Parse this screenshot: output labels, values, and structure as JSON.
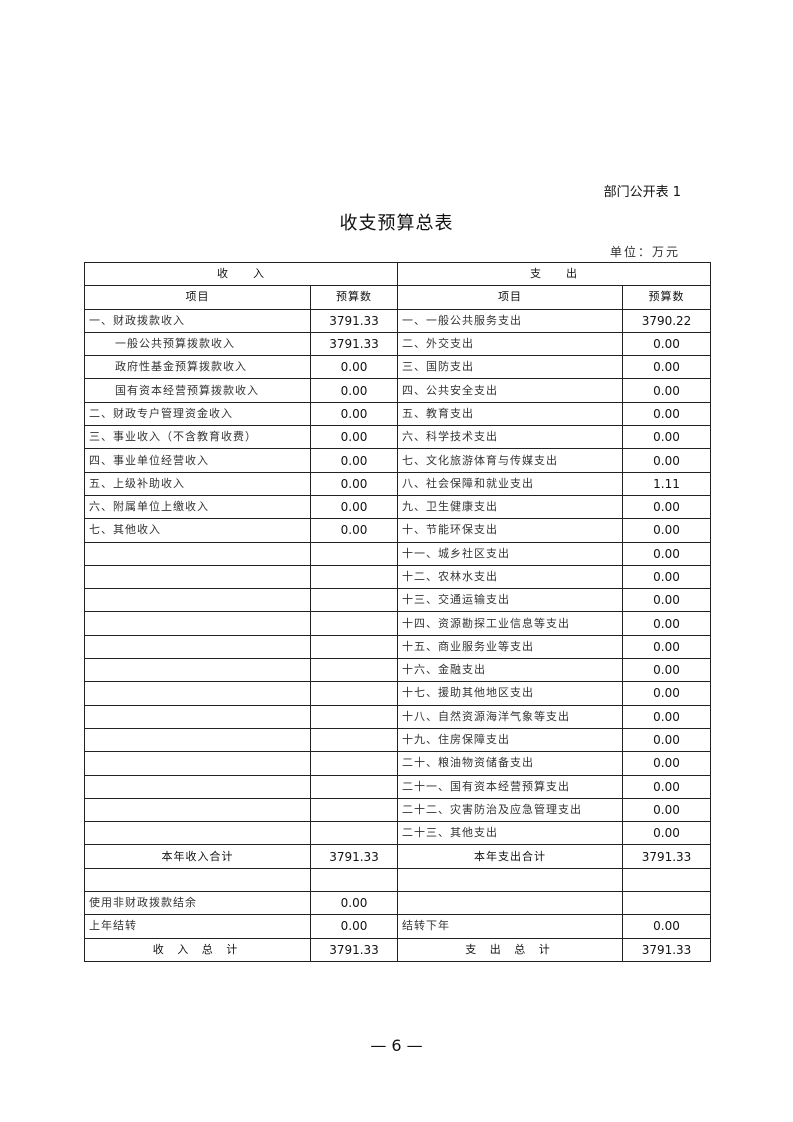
{
  "form_no": "部门公开表 1",
  "title": "收支预算总表",
  "unit": "单位：万元",
  "header": {
    "income": "收　　入",
    "expense": "支　　出",
    "item": "项目",
    "budget": "预算数"
  },
  "rows": [
    {
      "in_item": "一、财政拨款收入",
      "in_val": "3791.33",
      "out_item": "一、一般公共服务支出",
      "out_val": "3790.22"
    },
    {
      "in_item": "一般公共预算拨款收入",
      "in_indent": true,
      "in_val": "3791.33",
      "out_item": "二、外交支出",
      "out_val": "0.00"
    },
    {
      "in_item": "政府性基金预算拨款收入",
      "in_indent": true,
      "in_val": "0.00",
      "out_item": "三、国防支出",
      "out_val": "0.00"
    },
    {
      "in_item": "国有资本经营预算拨款收入",
      "in_indent": true,
      "in_val": "0.00",
      "out_item": "四、公共安全支出",
      "out_val": "0.00"
    },
    {
      "in_item": "二、财政专户管理资金收入",
      "in_val": "0.00",
      "out_item": "五、教育支出",
      "out_val": "0.00"
    },
    {
      "in_item": "三、事业收入（不含教育收费）",
      "in_val": "0.00",
      "out_item": "六、科学技术支出",
      "out_val": "0.00"
    },
    {
      "in_item": "四、事业单位经营收入",
      "in_val": "0.00",
      "out_item": "七、文化旅游体育与传媒支出",
      "out_val": "0.00"
    },
    {
      "in_item": "五、上级补助收入",
      "in_val": "0.00",
      "out_item": "八、社会保障和就业支出",
      "out_val": "1.11"
    },
    {
      "in_item": "六、附属单位上缴收入",
      "in_val": "0.00",
      "out_item": "九、卫生健康支出",
      "out_val": "0.00"
    },
    {
      "in_item": "七、其他收入",
      "in_val": "0.00",
      "out_item": "十、节能环保支出",
      "out_val": "0.00"
    },
    {
      "in_item": "",
      "in_val": "",
      "out_item": "十一、城乡社区支出",
      "out_val": "0.00"
    },
    {
      "in_item": "",
      "in_val": "",
      "out_item": "十二、农林水支出",
      "out_val": "0.00"
    },
    {
      "in_item": "",
      "in_val": "",
      "out_item": "十三、交通运输支出",
      "out_val": "0.00"
    },
    {
      "in_item": "",
      "in_val": "",
      "out_item": "十四、资源勘探工业信息等支出",
      "out_val": "0.00"
    },
    {
      "in_item": "",
      "in_val": "",
      "out_item": "十五、商业服务业等支出",
      "out_val": "0.00"
    },
    {
      "in_item": "",
      "in_val": "",
      "out_item": "十六、金融支出",
      "out_val": "0.00"
    },
    {
      "in_item": "",
      "in_val": "",
      "out_item": "十七、援助其他地区支出",
      "out_val": "0.00"
    },
    {
      "in_item": "",
      "in_val": "",
      "out_item": "十八、自然资源海洋气象等支出",
      "out_val": "0.00"
    },
    {
      "in_item": "",
      "in_val": "",
      "out_item": "十九、住房保障支出",
      "out_val": "0.00"
    },
    {
      "in_item": "",
      "in_val": "",
      "out_item": "二十、粮油物资储备支出",
      "out_val": "0.00"
    },
    {
      "in_item": "",
      "in_val": "",
      "out_item": "二十一、国有资本经营预算支出",
      "out_val": "0.00"
    },
    {
      "in_item": "",
      "in_val": "",
      "out_item": "二十二、灾害防治及应急管理支出",
      "out_val": "0.00"
    },
    {
      "in_item": "",
      "in_val": "",
      "out_item": "二十三、其他支出",
      "out_val": "0.00"
    }
  ],
  "year_total": {
    "in_item": "本年收入合计",
    "in_val": "3791.33",
    "out_item": "本年支出合计",
    "out_val": "3791.33"
  },
  "blank_row": {
    "in_item": "",
    "in_val": "",
    "out_item": "",
    "out_val": ""
  },
  "nonfiscal": {
    "in_item": "使用非财政拨款结余",
    "in_val": "0.00",
    "out_item": "",
    "out_val": ""
  },
  "carryover": {
    "in_item": "上年结转",
    "in_val": "0.00",
    "out_item": "结转下年",
    "out_val": "0.00"
  },
  "grand_total": {
    "in_item": "收 入 总 计",
    "in_val": "3791.33",
    "out_item": "支 出 总 计",
    "out_val": "3791.33"
  },
  "page_number": "— 6 —"
}
